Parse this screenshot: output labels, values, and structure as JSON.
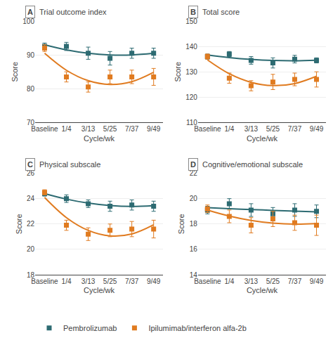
{
  "chart_data": [
    {
      "type": "scatter",
      "panel_label": "A",
      "title": "Trial outcome index",
      "xlabel": "Cycle/wk",
      "ylabel": "Score",
      "categories": [
        "Baseline",
        "1/4",
        "3/13",
        "5/25",
        "7/37",
        "9/49"
      ],
      "ylim": [
        70,
        100
      ],
      "yticks": [
        70,
        80,
        90,
        100
      ],
      "grid": true,
      "legend": "bottom",
      "series": [
        {
          "name": "Pembrolizumab",
          "color": "#2d6b72",
          "marker": "square",
          "values": [
            92.5,
            92.5,
            90.5,
            89.0,
            90.5,
            90.5
          ],
          "errors": [
            1.0,
            1.2,
            1.8,
            2.0,
            1.5,
            1.5
          ],
          "fit": [
            93.0,
            91.5,
            90.5,
            90.0,
            90.0,
            90.5
          ]
        },
        {
          "name": "Ipilumimab/interferon alfa-2b",
          "color": "#e07b20",
          "marker": "square",
          "values": [
            92.0,
            83.5,
            80.5,
            83.5,
            83.5,
            83.5
          ],
          "errors": [
            1.0,
            1.5,
            1.5,
            2.0,
            2.0,
            2.5
          ],
          "fit": [
            90.48214,
            85.46071,
            82.38571,
            81.25714,
            82.075,
            84.83929
          ]
        }
      ]
    },
    {
      "type": "scatter",
      "panel_label": "B",
      "title": "Total score",
      "xlabel": "Cycle/wk",
      "ylabel": "Score",
      "categories": [
        "Baseline",
        "1/4",
        "3/13",
        "5/25",
        "7/37",
        "9/49"
      ],
      "ylim": [
        110,
        150
      ],
      "yticks": [
        110,
        120,
        130,
        140,
        150
      ],
      "grid": true,
      "series": [
        {
          "name": "Pembrolizumab",
          "color": "#2d6b72",
          "marker": "square",
          "values": [
            136.0,
            137.0,
            134.5,
            133.5,
            135.0,
            134.5
          ],
          "errors": [
            1.0,
            1.0,
            1.5,
            2.0,
            1.5,
            1.0
          ],
          "fit": [
            136.625,
            135.60357,
            134.88571,
            134.47143,
            134.36071,
            134.55357
          ]
        },
        {
          "name": "Ipilumimab/interferon alfa-2b",
          "color": "#e07b20",
          "marker": "square",
          "values": [
            136.0,
            127.5,
            124.5,
            126.0,
            127.0,
            127.0
          ],
          "errors": [
            1.0,
            2.0,
            2.0,
            3.0,
            2.5,
            3.0
          ],
          "fit": [
            134.69643,
            129.23214,
            125.85714,
            124.57143,
            125.375,
            128.26786
          ]
        }
      ]
    },
    {
      "type": "scatter",
      "panel_label": "C",
      "title": "Physical subscale",
      "xlabel": "Cycle/wk",
      "ylabel": "Score",
      "categories": [
        "Baseline",
        "1/4",
        "3/13",
        "5/25",
        "7/37",
        "9/49"
      ],
      "ylim": [
        18,
        26
      ],
      "yticks": [
        18,
        20,
        22,
        24,
        26
      ],
      "grid": true,
      "series": [
        {
          "name": "Pembrolizumab",
          "color": "#2d6b72",
          "marker": "square",
          "values": [
            24.4,
            24.0,
            23.6,
            23.4,
            23.5,
            23.4
          ],
          "errors": [
            0.2,
            0.3,
            0.3,
            0.4,
            0.4,
            0.4
          ],
          "fit": [
            24.403571,
            23.962143,
            23.645714,
            23.454286,
            23.387857,
            23.446429
          ]
        },
        {
          "name": "Ipilumimab/interferon alfa-2b",
          "color": "#e07b20",
          "marker": "square",
          "values": [
            24.5,
            21.9,
            21.2,
            21.5,
            21.6,
            21.6
          ],
          "errors": [
            0.2,
            0.4,
            0.5,
            0.5,
            0.6,
            0.7
          ],
          "fit": [
            24.092857,
            22.504286,
            21.494286,
            21.062857,
            21.21,
            21.935714
          ]
        }
      ]
    },
    {
      "type": "scatter",
      "panel_label": "D",
      "title": "Cognitive/emotional subscale",
      "xlabel": "Cycle/wk",
      "ylabel": "Score",
      "categories": [
        "Baseline",
        "1/4",
        "3/13",
        "5/25",
        "7/37",
        "9/49"
      ],
      "ylim": [
        14,
        22
      ],
      "yticks": [
        14,
        16,
        18,
        20,
        22
      ],
      "grid": true,
      "series": [
        {
          "name": "Pembrolizumab",
          "color": "#2d6b72",
          "marker": "square",
          "values": [
            19.1,
            19.6,
            19.1,
            18.8,
            19.1,
            19.0
          ],
          "errors": [
            0.3,
            0.4,
            0.5,
            0.5,
            0.5,
            0.5
          ],
          "fit": [
            19.292857,
            19.212857,
            19.14,
            19.074286,
            19.015714,
            18.964286
          ]
        },
        {
          "name": "Ipilumimab/interferon alfa-2b",
          "color": "#e07b20",
          "marker": "square",
          "values": [
            19.2,
            18.6,
            17.9,
            18.4,
            18.1,
            17.9
          ],
          "errors": [
            0.3,
            0.5,
            0.6,
            0.6,
            0.6,
            0.8
          ],
          "fit": [
            19.1,
            18.628571,
            18.285714,
            18.071429,
            17.985714,
            18.028571
          ]
        }
      ]
    }
  ]
}
